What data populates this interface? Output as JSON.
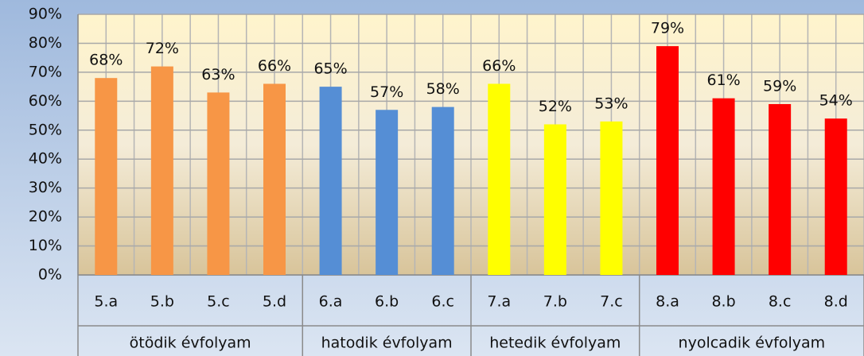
{
  "chart_data": {
    "type": "bar",
    "ylim": [
      0,
      90
    ],
    "yticks": [
      {
        "value": 0,
        "label": "0%"
      },
      {
        "value": 10,
        "label": "10%"
      },
      {
        "value": 20,
        "label": "20%"
      },
      {
        "value": 30,
        "label": "30%"
      },
      {
        "value": 40,
        "label": "40%"
      },
      {
        "value": 50,
        "label": "50%"
      },
      {
        "value": 60,
        "label": "60%"
      },
      {
        "value": 70,
        "label": "70%"
      },
      {
        "value": 80,
        "label": "80%"
      },
      {
        "value": 90,
        "label": "90%"
      }
    ],
    "grid": true,
    "groups": [
      {
        "name": "ötödik évfolyam",
        "color": "#f79646",
        "categories": [
          "5.a",
          "5.b",
          "5.c",
          "5.d"
        ],
        "values": [
          68,
          72,
          63,
          66
        ],
        "value_labels": [
          "68%",
          "72%",
          "63%",
          "66%"
        ]
      },
      {
        "name": "hatodik évfolyam",
        "color": "#558ed5",
        "categories": [
          "6.a",
          "6.b",
          "6.c"
        ],
        "values": [
          65,
          57,
          58
        ],
        "value_labels": [
          "65%",
          "57%",
          "58%"
        ]
      },
      {
        "name": "hetedik évfolyam",
        "color": "#ffff00",
        "categories": [
          "7.a",
          "7.b",
          "7.c"
        ],
        "values": [
          66,
          52,
          53
        ],
        "value_labels": [
          "66%",
          "52%",
          "53%"
        ]
      },
      {
        "name": "nyolcadik évfolyam",
        "color": "#ff0000",
        "categories": [
          "8.a",
          "8.b",
          "8.c",
          "8.d"
        ],
        "values": [
          79,
          61,
          59,
          54
        ],
        "value_labels": [
          "79%",
          "61%",
          "59%",
          "54%"
        ]
      }
    ]
  }
}
